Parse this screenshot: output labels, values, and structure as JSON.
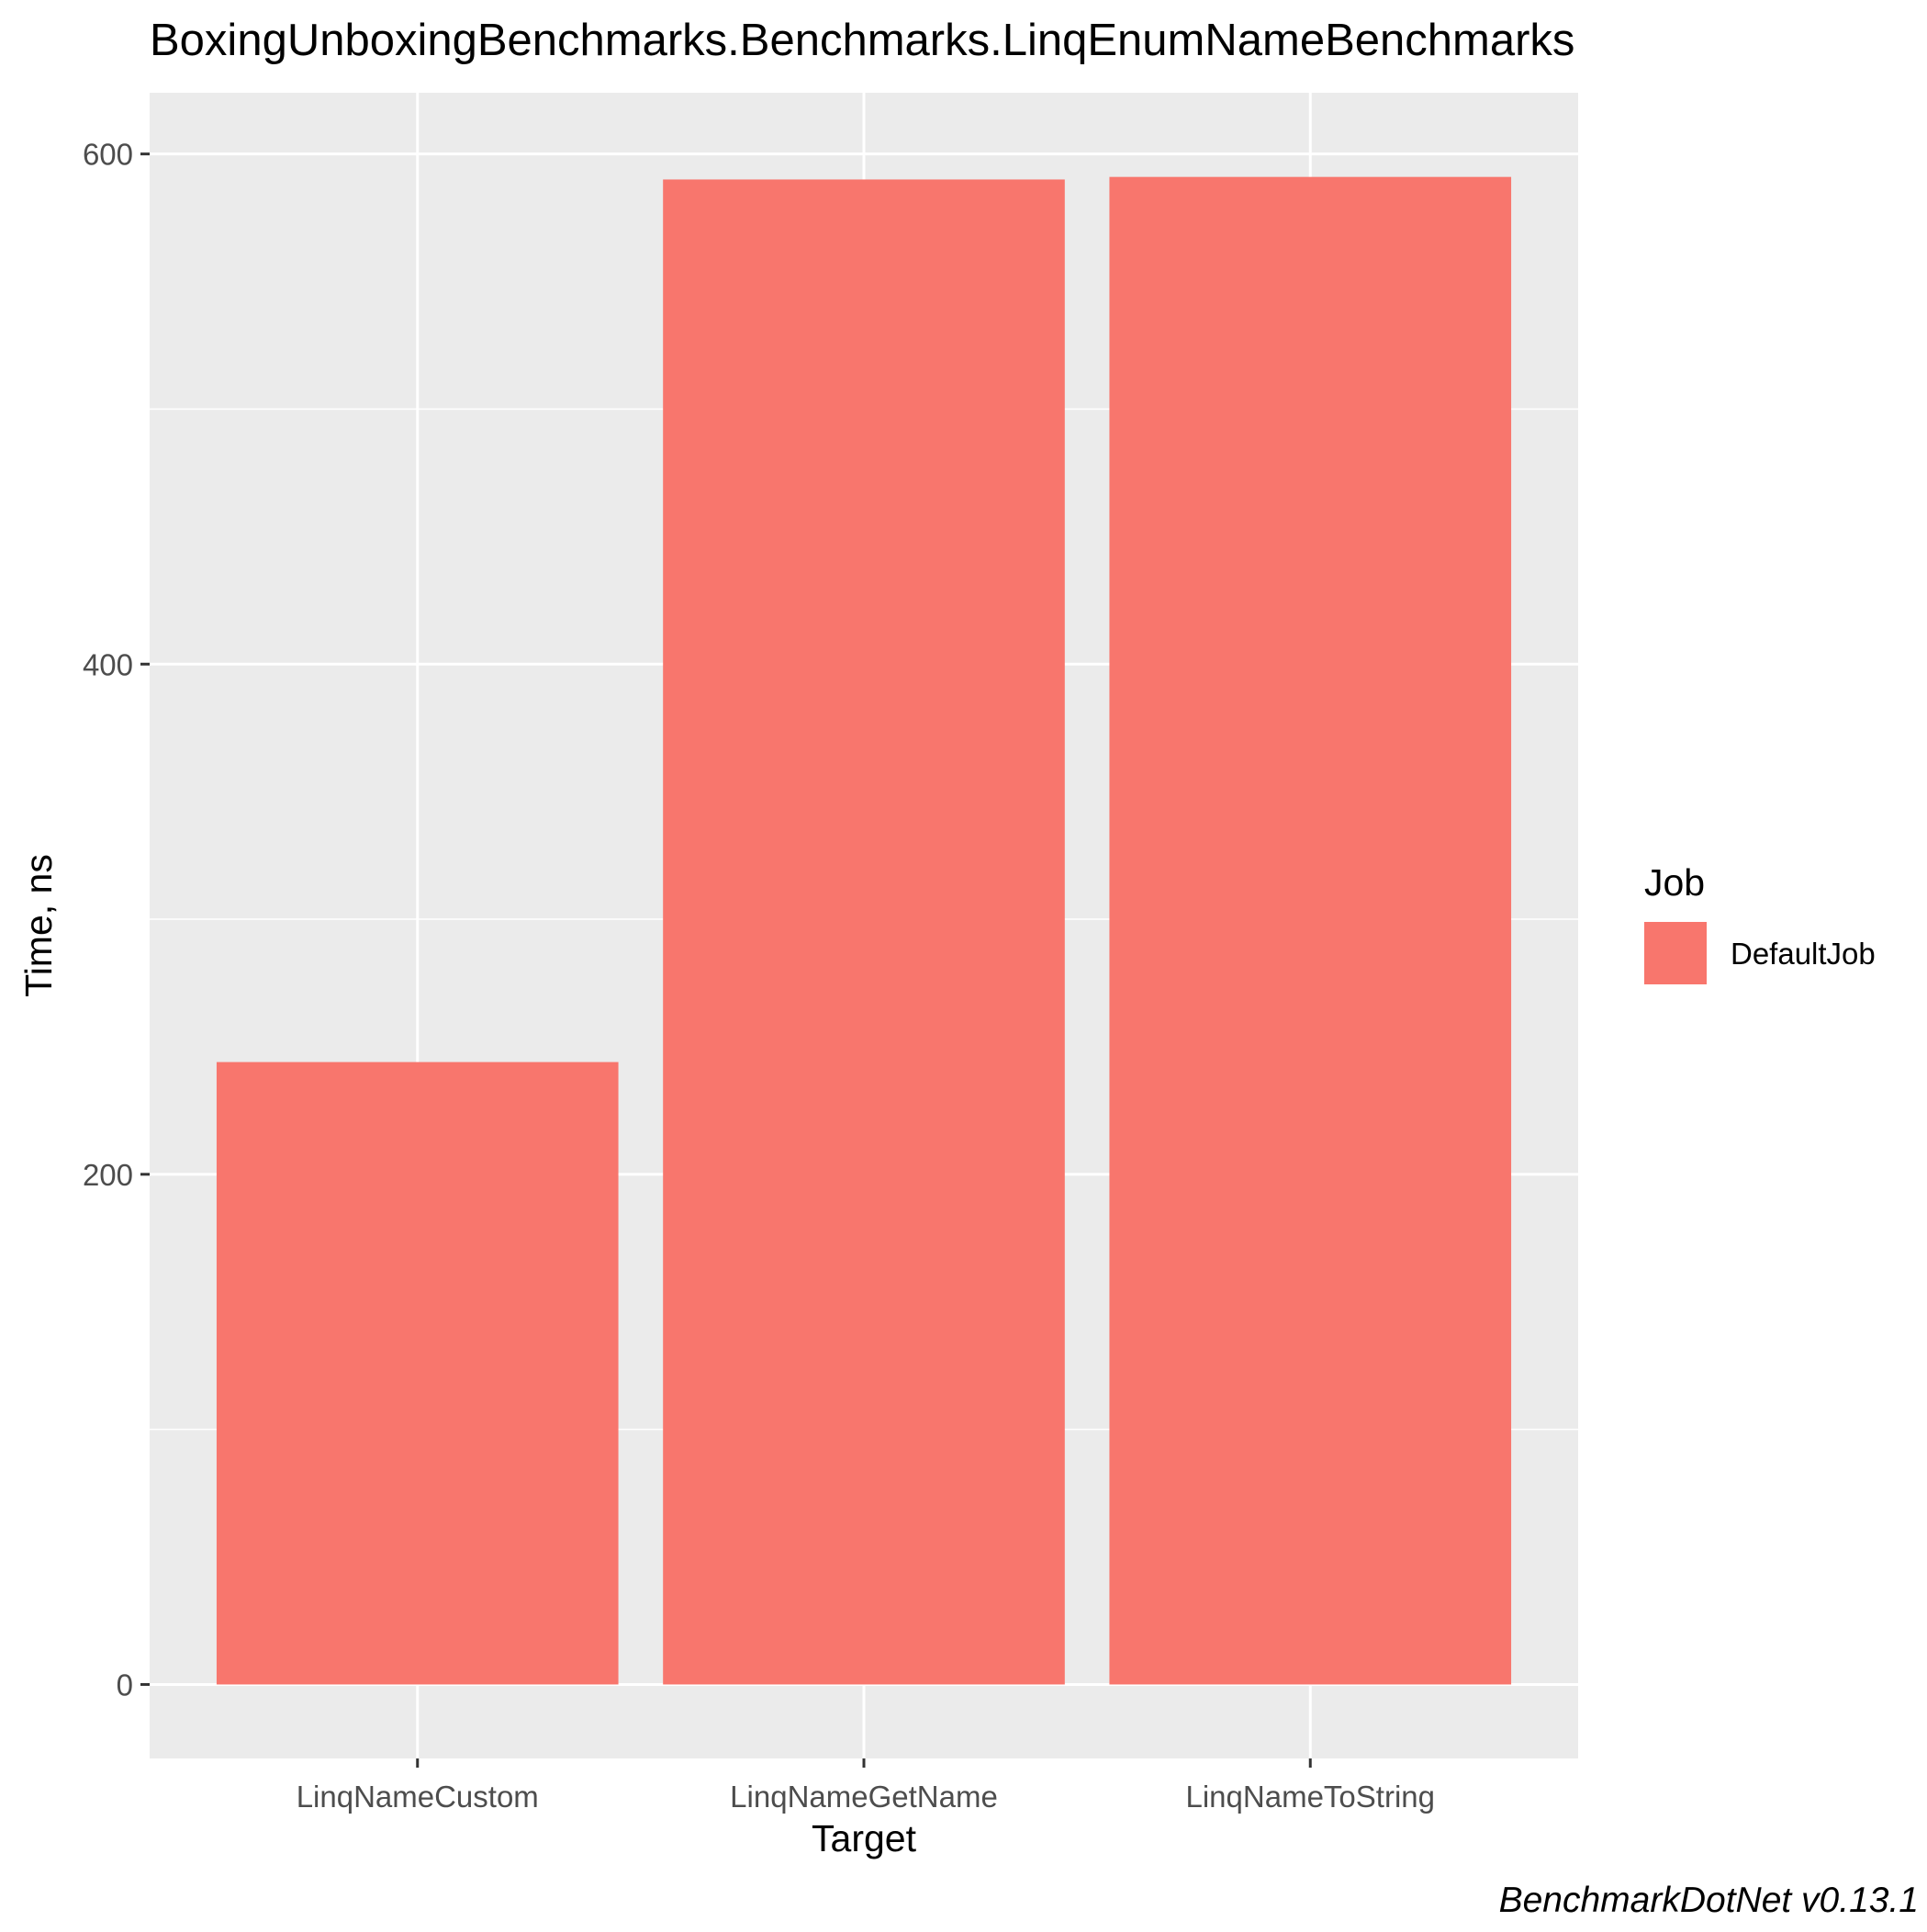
{
  "chart_data": {
    "type": "bar",
    "title": "BoxingUnboxingBenchmarks.Benchmarks.LinqEnumNameBenchmarks",
    "xlabel": "Target",
    "ylabel": "Time, ns",
    "categories": [
      "LinqNameCustom",
      "LinqNameGetName",
      "LinqNameToString"
    ],
    "series": [
      {
        "name": "DefaultJob",
        "values": [
          244,
          590,
          591
        ]
      }
    ],
    "ylim": [
      -29,
      624
    ],
    "yticks": [
      0,
      200,
      400,
      600
    ],
    "ytick_labels": [
      "0",
      "200",
      "400",
      "600"
    ],
    "grid": true,
    "legend": {
      "title": "Job",
      "position": "right",
      "entries": [
        "DefaultJob"
      ]
    },
    "caption": "BenchmarkDotNet v0.13.1",
    "colors": {
      "bar": "#F8766D",
      "panel_background": "#EBEBEB",
      "grid_line": "#FFFFFF",
      "axis_text": "#4D4D4D",
      "title_text": "#000000"
    }
  }
}
